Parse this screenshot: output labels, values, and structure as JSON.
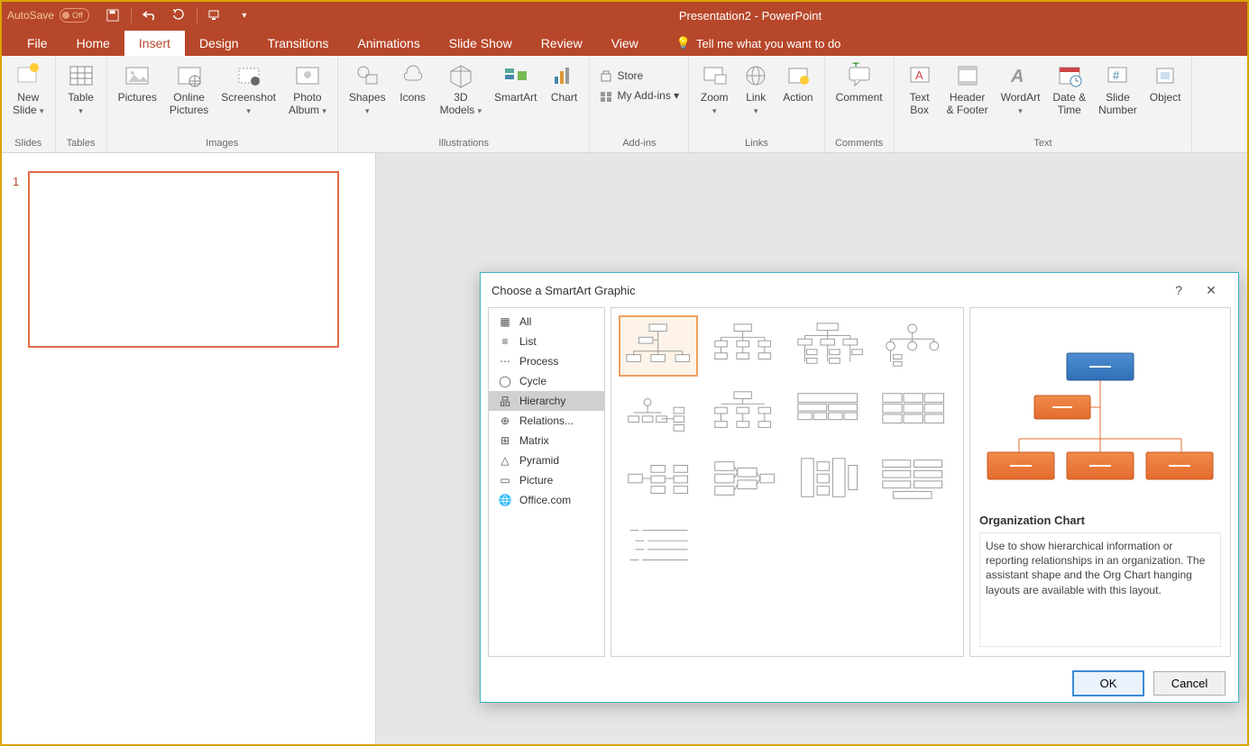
{
  "titlebar": {
    "autosave_label": "AutoSave",
    "autosave_state": "Off",
    "doc_title": "Presentation2  -  PowerPoint"
  },
  "tabs": {
    "items": [
      "File",
      "Home",
      "Insert",
      "Design",
      "Transitions",
      "Animations",
      "Slide Show",
      "Review",
      "View"
    ],
    "active_index": 2,
    "tell_me": "Tell me what you want to do"
  },
  "ribbon": {
    "groups": [
      {
        "label": "Slides",
        "buttons": [
          {
            "label": "New\nSlide ▾"
          }
        ]
      },
      {
        "label": "Tables",
        "buttons": [
          {
            "label": "Table\n▾"
          }
        ]
      },
      {
        "label": "Images",
        "buttons": [
          {
            "label": "Pictures"
          },
          {
            "label": "Online\nPictures"
          },
          {
            "label": "Screenshot\n▾"
          },
          {
            "label": "Photo\nAlbum ▾"
          }
        ]
      },
      {
        "label": "Illustrations",
        "buttons": [
          {
            "label": "Shapes\n▾"
          },
          {
            "label": "Icons"
          },
          {
            "label": "3D\nModels ▾"
          },
          {
            "label": "SmartArt"
          },
          {
            "label": "Chart"
          }
        ]
      },
      {
        "label": "Add-ins",
        "mini": [
          "Store",
          "My Add-ins ▾"
        ]
      },
      {
        "label": "Links",
        "buttons": [
          {
            "label": "Zoom\n▾"
          },
          {
            "label": "Link\n▾"
          },
          {
            "label": "Action"
          }
        ]
      },
      {
        "label": "Comments",
        "buttons": [
          {
            "label": "Comment"
          }
        ]
      },
      {
        "label": "Text",
        "buttons": [
          {
            "label": "Text\nBox"
          },
          {
            "label": "Header\n& Footer"
          },
          {
            "label": "WordArt\n▾"
          },
          {
            "label": "Date &\nTime"
          },
          {
            "label": "Slide\nNumber"
          },
          {
            "label": "Object"
          }
        ]
      }
    ]
  },
  "thumbnails": {
    "slide_number": "1"
  },
  "dialog": {
    "title": "Choose a SmartArt Graphic",
    "categories": [
      "All",
      "List",
      "Process",
      "Cycle",
      "Hierarchy",
      "Relations...",
      "Matrix",
      "Pyramid",
      "Picture",
      "Office.com"
    ],
    "selected_category_index": 4,
    "selected_grid_index": 0,
    "grid_count": 12,
    "preview": {
      "title": "Organization Chart",
      "desc": "Use to show hierarchical information or reporting relationships in an organization. The assistant shape and the Org Chart hanging layouts are available with this layout.",
      "colors": {
        "top": "#2f6fb6",
        "top_grad": "#4f8ed2",
        "rest": "#e46c2e",
        "rest_grad": "#f08a4b",
        "line": "#e46c2e"
      }
    },
    "buttons": {
      "ok": "OK",
      "cancel": "Cancel"
    }
  }
}
